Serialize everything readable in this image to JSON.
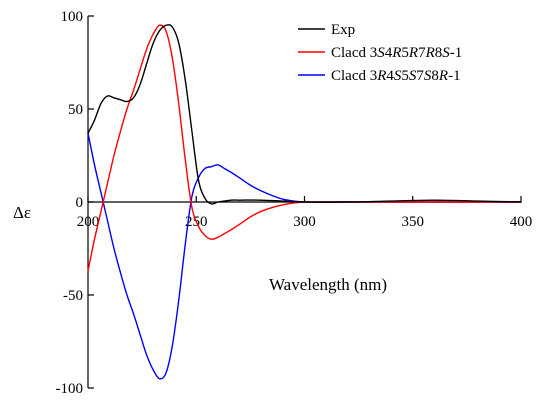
{
  "chart_data": {
    "type": "line",
    "title": "",
    "xlabel": "Wavelength (nm)",
    "ylabel": "Δε",
    "xlim": [
      200,
      400
    ],
    "ylim": [
      -100,
      100
    ],
    "x_ticks": [
      200,
      250,
      300,
      350,
      400
    ],
    "y_ticks": [
      -100,
      -50,
      0,
      50,
      100
    ],
    "grid": false,
    "legend_position": "top-right",
    "series": [
      {
        "name": "Exp",
        "color": "#000000",
        "x": [
          200,
          203,
          206,
          209,
          212,
          215,
          218,
          221,
          224,
          227,
          230,
          233,
          236,
          239,
          242,
          245,
          248,
          251,
          254,
          257,
          260,
          263,
          266,
          270,
          280,
          290,
          300,
          320,
          340,
          360,
          380,
          400
        ],
        "y": [
          37,
          44,
          53,
          57,
          56,
          55,
          54,
          56,
          63,
          74,
          85,
          92,
          95,
          94,
          85,
          65,
          38,
          12,
          2,
          -1,
          0,
          0.5,
          1,
          1,
          1,
          0.5,
          0,
          0,
          0.5,
          1,
          0.5,
          0
        ]
      },
      {
        "name": "Clacd 3S4R5R7R8S-1",
        "color": "#ff0000",
        "x": [
          200,
          203,
          206,
          209,
          212,
          215,
          218,
          221,
          224,
          227,
          230,
          233,
          236,
          239,
          242,
          245,
          248,
          251,
          254,
          257,
          260,
          263,
          266,
          270,
          275,
          280,
          285,
          290,
          295,
          300,
          310,
          320,
          340,
          360,
          380,
          400
        ],
        "y": [
          -37,
          -20,
          -5,
          10,
          25,
          38,
          50,
          60,
          71,
          82,
          90,
          95,
          92,
          77,
          52,
          22,
          -3,
          -13,
          -18,
          -20,
          -19,
          -17,
          -15,
          -12,
          -8,
          -5,
          -3,
          -1.5,
          -0.5,
          0,
          0,
          0,
          0,
          0,
          0,
          0
        ]
      },
      {
        "name": "Clacd 3R4S5S7S8R-1",
        "color": "#0000ff",
        "x": [
          200,
          203,
          206,
          209,
          212,
          215,
          218,
          221,
          224,
          227,
          230,
          233,
          236,
          239,
          242,
          245,
          248,
          251,
          254,
          257,
          260,
          263,
          266,
          270,
          275,
          280,
          285,
          290,
          295,
          300,
          310,
          320,
          340,
          360,
          380,
          400
        ],
        "y": [
          37,
          20,
          5,
          -10,
          -25,
          -38,
          -50,
          -60,
          -71,
          -82,
          -90,
          -95,
          -92,
          -77,
          -52,
          -22,
          3,
          13,
          18,
          19,
          20,
          18,
          16,
          13,
          9,
          6,
          3.5,
          1.5,
          0.5,
          0,
          0,
          0,
          0,
          0,
          0,
          0
        ]
      }
    ]
  }
}
